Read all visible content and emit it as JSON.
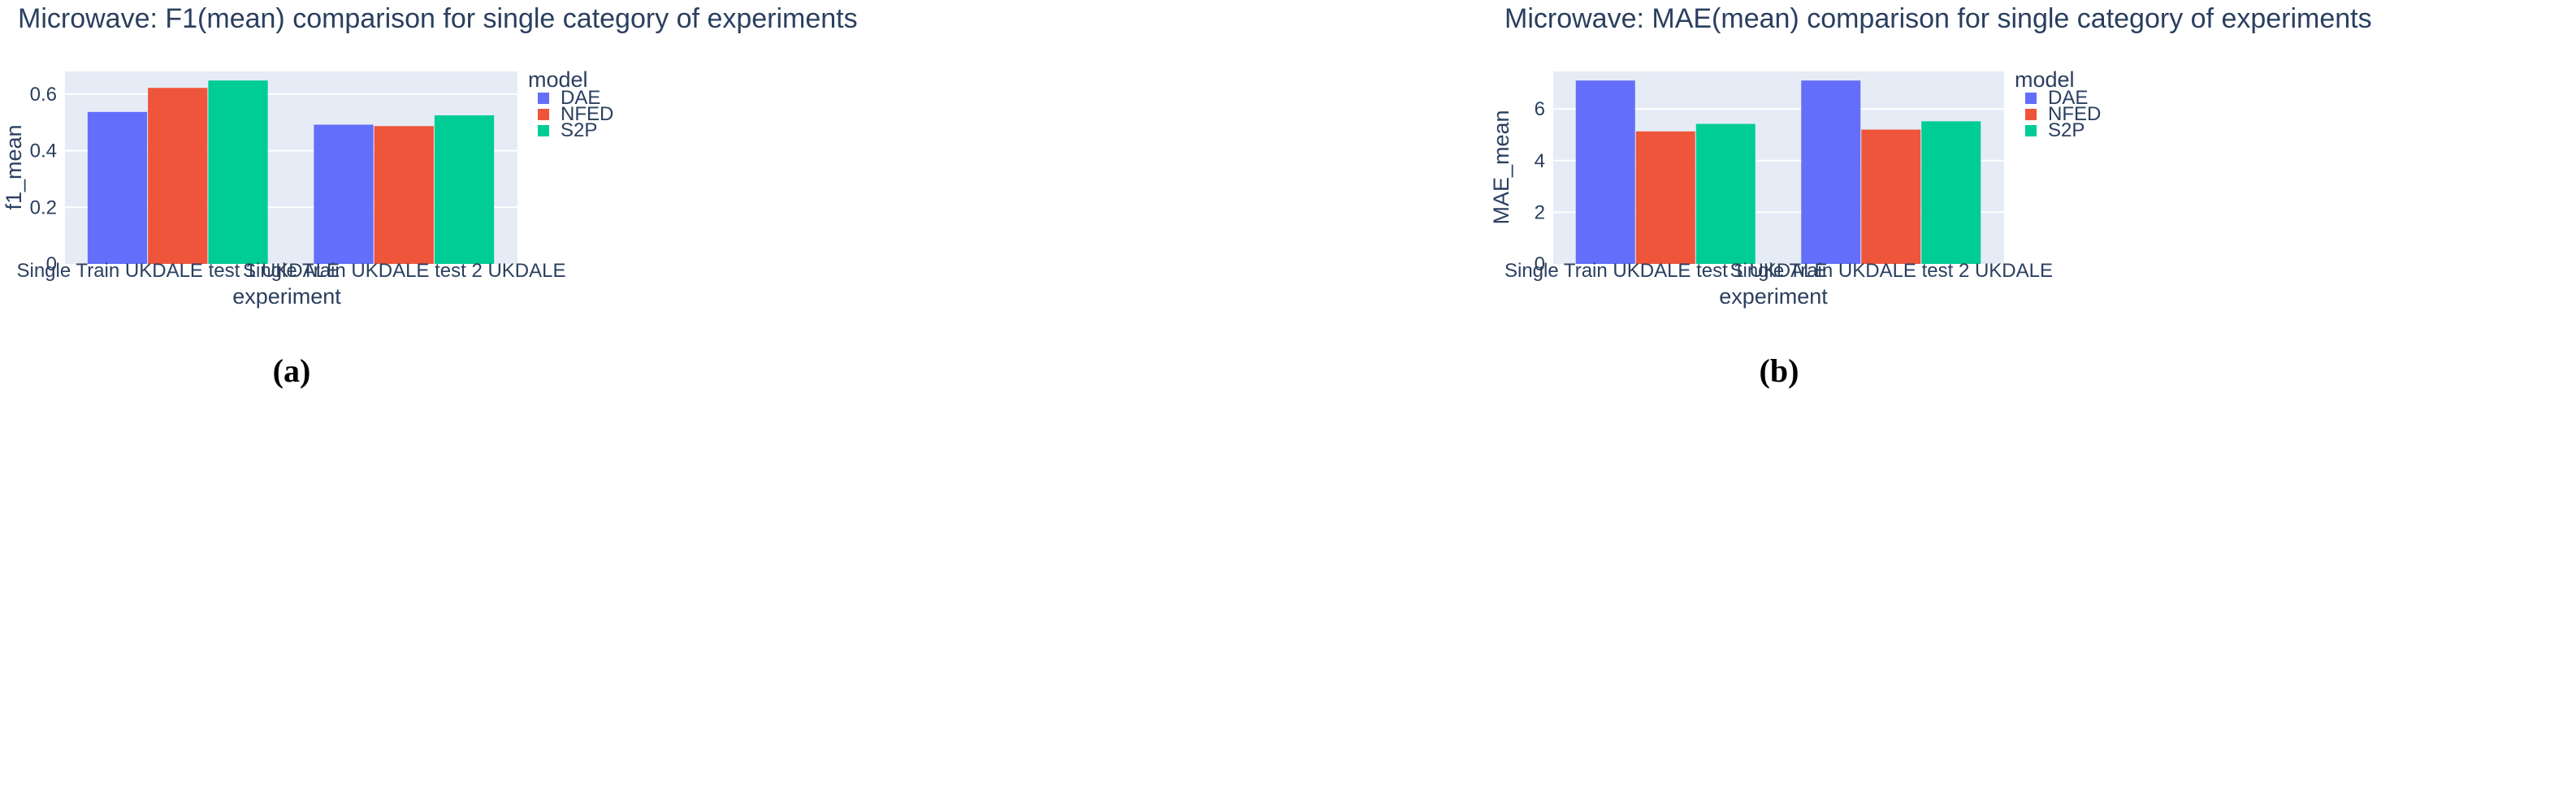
{
  "chart_data": [
    {
      "type": "bar",
      "title": "Microwave: F1(mean) comparison for single category of experiments",
      "xlabel": "experiment",
      "ylabel": "f1_mean",
      "categories": [
        "Single Train UKDALE test 1 UKDALE",
        "Single Train UKDALE test 2 UKDALE"
      ],
      "series": [
        {
          "name": "DAE",
          "values": [
            0.537,
            0.492
          ]
        },
        {
          "name": "NFED",
          "values": [
            0.622,
            0.487
          ]
        },
        {
          "name": "S2P",
          "values": [
            0.648,
            0.525
          ]
        }
      ],
      "ylim": [
        0,
        0.68
      ],
      "yticks": [
        0,
        0.2,
        0.4,
        0.6
      ],
      "ytick_labels": [
        "0",
        "0.2",
        "0.4",
        "0.6"
      ],
      "legend_title": "model",
      "legend_position": "right",
      "grid": true,
      "panel_label": "(a)"
    },
    {
      "type": "bar",
      "title": "Microwave: MAE(mean) comparison for single category of experiments",
      "xlabel": "experiment",
      "ylabel": "MAE_mean",
      "categories": [
        "Single Train UKDALE test 1 UKDALE",
        "Single Train UKDALE test 2 UKDALE"
      ],
      "series": [
        {
          "name": "DAE",
          "values": [
            7.1,
            7.1
          ]
        },
        {
          "name": "NFED",
          "values": [
            5.13,
            5.2
          ]
        },
        {
          "name": "S2P",
          "values": [
            5.42,
            5.52
          ]
        }
      ],
      "ylim": [
        0,
        7.45
      ],
      "yticks": [
        0,
        2,
        4,
        6
      ],
      "ytick_labels": [
        "0",
        "2",
        "4",
        "6"
      ],
      "legend_title": "model",
      "legend_position": "right",
      "grid": true,
      "panel_label": "(b)"
    }
  ],
  "colors": {
    "DAE": "#636efa",
    "NFED": "#ef553b",
    "S2P": "#00cc96",
    "plot_bg": "#e5ecf6",
    "grid": "#ffffff",
    "text": "#2a3f5f"
  }
}
